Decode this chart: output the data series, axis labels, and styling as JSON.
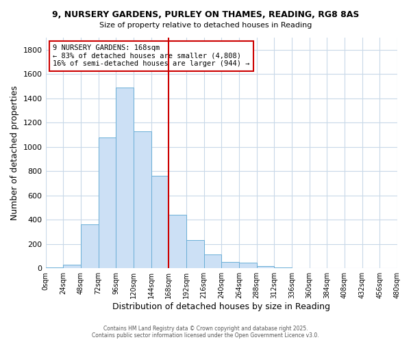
{
  "title": "9, NURSERY GARDENS, PURLEY ON THAMES, READING, RG8 8AS",
  "subtitle": "Size of property relative to detached houses in Reading",
  "xlabel": "Distribution of detached houses by size in Reading",
  "ylabel": "Number of detached properties",
  "bar_color": "#cce0f5",
  "bar_edge_color": "#6aaed6",
  "bin_edges": [
    0,
    24,
    48,
    72,
    96,
    120,
    144,
    168,
    192,
    216,
    240,
    264,
    288,
    312,
    336,
    360,
    384,
    408,
    432,
    456,
    480
  ],
  "bar_heights": [
    10,
    30,
    360,
    1075,
    1490,
    1130,
    760,
    440,
    230,
    115,
    55,
    45,
    18,
    5,
    0,
    0,
    0,
    0,
    0,
    0
  ],
  "vline_x": 168,
  "vline_color": "#cc0000",
  "annotation_text": "9 NURSERY GARDENS: 168sqm\n← 83% of detached houses are smaller (4,808)\n16% of semi-detached houses are larger (944) →",
  "annotation_box_edgecolor": "#cc0000",
  "annotation_box_facecolor": "#ffffff",
  "ylim": [
    0,
    1900
  ],
  "yticks": [
    0,
    200,
    400,
    600,
    800,
    1000,
    1200,
    1400,
    1600,
    1800
  ],
  "xtick_labels": [
    "0sqm",
    "24sqm",
    "48sqm",
    "72sqm",
    "96sqm",
    "120sqm",
    "144sqm",
    "168sqm",
    "192sqm",
    "216sqm",
    "240sqm",
    "264sqm",
    "288sqm",
    "312sqm",
    "336sqm",
    "360sqm",
    "384sqm",
    "408sqm",
    "432sqm",
    "456sqm",
    "480sqm"
  ],
  "footer_text": "Contains HM Land Registry data © Crown copyright and database right 2025.\nContains public sector information licensed under the Open Government Licence v3.0.",
  "background_color": "#ffffff",
  "grid_color": "#c8d8e8"
}
